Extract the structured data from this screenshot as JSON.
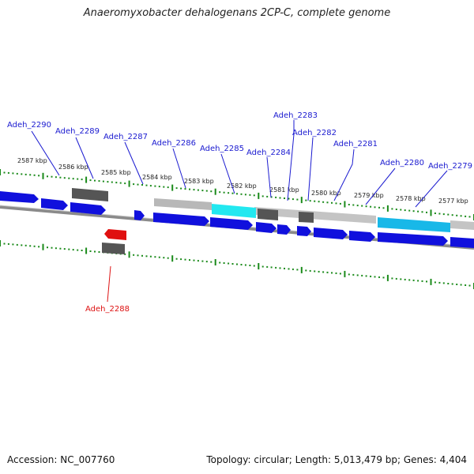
{
  "title": "Anaeromyxobacter dehalogenans 2CP-C, complete genome",
  "footer": {
    "accession": "Accession: NC_007760",
    "summary": "Topology: circular; Length: 5,013,479 bp; Genes: 4,404"
  },
  "colors": {
    "forward_cds": "#1010dd",
    "reverse_cds": "#e01010",
    "other_feature": "#666666",
    "highlight": "#22e8f0",
    "tick": "#1a8a1a",
    "backbone": "#8a8a8a"
  },
  "kbp_labels": [
    "2587 kbp",
    "2586 kbp",
    "2585 kbp",
    "2584 kbp",
    "2583 kbp",
    "2582 kbp",
    "2581 kbp",
    "2580 kbp",
    "2579 kbp",
    "2578 kbp",
    "2577 kbp"
  ],
  "gene_labels": [
    {
      "text": "Adeh_2290",
      "color": "blue"
    },
    {
      "text": "Adeh_2289",
      "color": "blue"
    },
    {
      "text": "Adeh_2287",
      "color": "blue"
    },
    {
      "text": "Adeh_2286",
      "color": "blue"
    },
    {
      "text": "Adeh_2285",
      "color": "blue"
    },
    {
      "text": "Adeh_2284",
      "color": "blue"
    },
    {
      "text": "Adeh_2283",
      "color": "blue"
    },
    {
      "text": "Adeh_2282",
      "color": "blue"
    },
    {
      "text": "Adeh_2281",
      "color": "blue"
    },
    {
      "text": "Adeh_2280",
      "color": "blue"
    },
    {
      "text": "Adeh_2279",
      "color": "blue"
    },
    {
      "text": "Adeh_2288",
      "color": "red"
    }
  ]
}
